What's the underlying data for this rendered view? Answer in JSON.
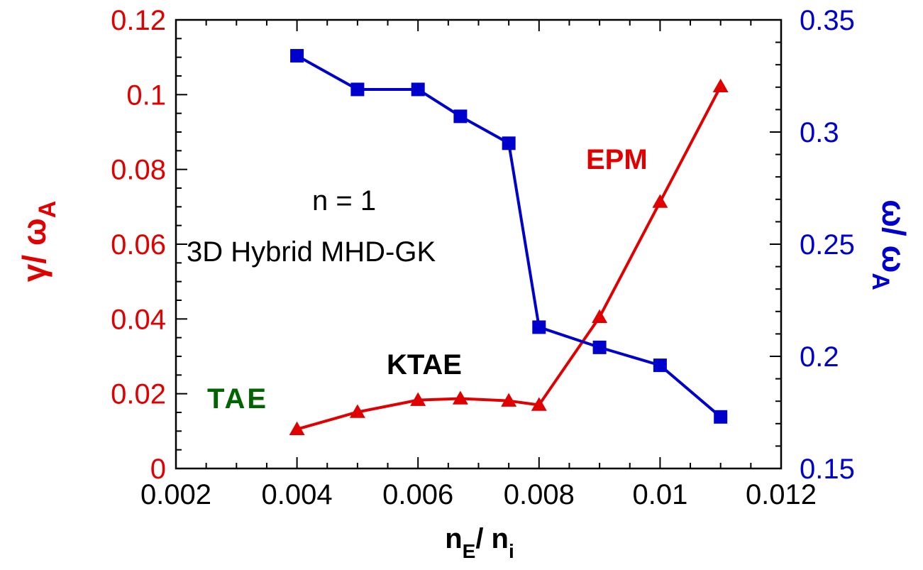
{
  "chart_data": {
    "type": "line",
    "xlabel": {
      "main": "n",
      "sub1": "E",
      "sep": "/ n",
      "sub2": "i"
    },
    "ylabel_left": {
      "main": "γ/ ω",
      "sub": "A"
    },
    "ylabel_right": {
      "main": "ω/ ω",
      "sub": "A"
    },
    "xlim": [
      0.002,
      0.012
    ],
    "ylim_left": [
      0,
      0.12
    ],
    "ylim_right": [
      0.15,
      0.35
    ],
    "x_ticks": [
      "0.002",
      "0.004",
      "0.006",
      "0.008",
      "0.01",
      "0.012"
    ],
    "x_tick_values": [
      0.002,
      0.004,
      0.006,
      0.008,
      0.01,
      0.012
    ],
    "y_left_ticks": [
      "0",
      "0.02",
      "0.04",
      "0.06",
      "0.08",
      "0.1",
      "0.12"
    ],
    "y_left_tick_values": [
      0,
      0.02,
      0.04,
      0.06,
      0.08,
      0.1,
      0.12
    ],
    "y_right_ticks": [
      "0.15",
      "0.2",
      "0.25",
      "0.3",
      "0.35"
    ],
    "y_right_tick_values": [
      0.15,
      0.2,
      0.25,
      0.3,
      0.35
    ],
    "series": [
      {
        "axis": "left",
        "color": "#e00000",
        "marker": "triangle",
        "x": [
          0.004,
          0.005,
          0.006,
          0.0067,
          0.0075,
          0.008,
          0.009,
          0.01,
          0.011
        ],
        "y": [
          0.0105,
          0.0151,
          0.0183,
          0.0187,
          0.0181,
          0.017,
          0.0405,
          0.0713,
          0.1022
        ]
      },
      {
        "axis": "right",
        "color": "#0000cc",
        "marker": "square",
        "x": [
          0.004,
          0.005,
          0.006,
          0.0067,
          0.0075,
          0.008,
          0.009,
          0.01,
          0.011
        ],
        "y": [
          0.334,
          0.319,
          0.319,
          0.307,
          0.295,
          0.213,
          0.204,
          0.196,
          0.173
        ]
      }
    ],
    "annotations": [
      {
        "text": "n = 1",
        "color": "#000000",
        "bold": false
      },
      {
        "text": "3D Hybrid MHD-GK",
        "color": "#000000",
        "bold": false
      },
      {
        "text": "EPM",
        "color": "#e00000",
        "bold": true
      },
      {
        "text": "KTAE",
        "color": "#000000",
        "bold": true
      },
      {
        "text": "TAE",
        "color": "#006400",
        "bold": true
      }
    ],
    "colors": {
      "left_axis": "#e00000",
      "right_axis": "#0000cc",
      "tae": "#006400"
    },
    "grid": false
  }
}
